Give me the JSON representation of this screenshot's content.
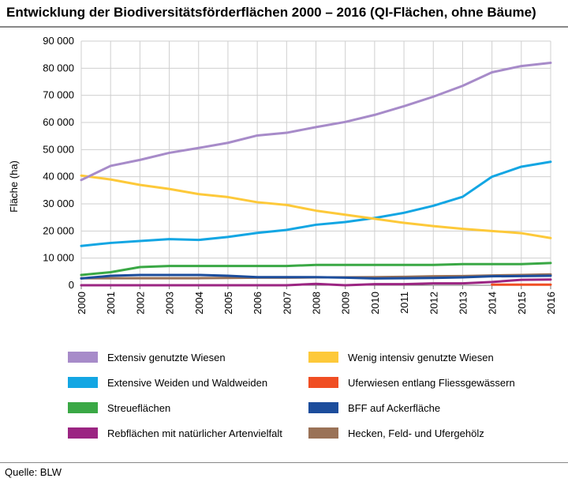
{
  "title": "Entwicklung der Biodiversitätsförderflächen 2000 – 2016 (QI-Flächen, ohne Bäume)",
  "source": "Quelle: BLW",
  "chart_data": {
    "type": "line",
    "title": "Entwicklung der Biodiversitätsförderflächen 2000 – 2016 (QI-Flächen, ohne Bäume)",
    "xlabel": "",
    "ylabel": "Fläche (ha)",
    "ylim": [
      0,
      90000
    ],
    "grid": true,
    "legend_position": "bottom",
    "x": [
      2000,
      2001,
      2002,
      2003,
      2004,
      2005,
      2006,
      2007,
      2008,
      2009,
      2010,
      2011,
      2012,
      2013,
      2014,
      2015,
      2016
    ],
    "x_tick_labels": [
      "2000",
      "2001",
      "2002",
      "2003",
      "2004",
      "2005",
      "2006",
      "2007",
      "2008",
      "2009",
      "2010",
      "2011",
      "2012",
      "2013",
      "2014",
      "2015",
      "2016"
    ],
    "y_ticks": [
      0,
      10000,
      20000,
      30000,
      40000,
      50000,
      60000,
      70000,
      80000,
      90000
    ],
    "y_tick_labels": [
      "0",
      "10 000",
      "20 000",
      "30 000",
      "40 000",
      "50 000",
      "60 000",
      "70 000",
      "80 000",
      "90 000"
    ],
    "series": [
      {
        "name": "Extensiv genutzte Wiesen",
        "color": "#a78bc9",
        "values": [
          38800,
          44000,
          46200,
          48800,
          50600,
          52500,
          55200,
          56200,
          58300,
          60200,
          62800,
          66000,
          69500,
          73500,
          78500,
          80800,
          82000
        ]
      },
      {
        "name": "Wenig intensiv genutzte Wiesen",
        "color": "#fdc93a",
        "values": [
          40400,
          39000,
          37000,
          35500,
          33600,
          32500,
          30600,
          29600,
          27500,
          26000,
          24500,
          23000,
          21800,
          20800,
          20000,
          19200,
          17400
        ]
      },
      {
        "name": "Extensive Weiden und Waldweiden",
        "color": "#13a6e3",
        "values": [
          14500,
          15600,
          16300,
          17000,
          16700,
          17800,
          19300,
          20400,
          22300,
          23300,
          24800,
          26700,
          29300,
          32600,
          40000,
          43700,
          45500
        ]
      },
      {
        "name": "Uferwiesen entlang Fliessgewässern",
        "color": "#f04e23",
        "values": [
          null,
          null,
          null,
          null,
          null,
          null,
          null,
          null,
          null,
          null,
          null,
          null,
          null,
          null,
          200,
          200,
          200
        ]
      },
      {
        "name": "Streueflächen",
        "color": "#3aa845",
        "values": [
          3800,
          4800,
          6700,
          7100,
          7100,
          7100,
          7100,
          7100,
          7500,
          7500,
          7500,
          7500,
          7500,
          7800,
          7800,
          7800,
          8200
        ]
      },
      {
        "name": "BFF auf Ackerfläche",
        "color": "#1c4d9c",
        "values": [
          2500,
          3500,
          3800,
          3800,
          3800,
          3500,
          3000,
          3000,
          3000,
          2800,
          2500,
          2600,
          2700,
          2900,
          3300,
          3400,
          3500
        ]
      },
      {
        "name": "Rebflächen mit natürlicher Artenvielfalt",
        "color": "#9b2582",
        "values": [
          0,
          0,
          0,
          0,
          0,
          0,
          0,
          0,
          500,
          0,
          400,
          400,
          700,
          700,
          1200,
          2000,
          2100
        ]
      },
      {
        "name": "Hecken, Feld- und Ufergehölz",
        "color": "#9a7257",
        "values": [
          2600,
          2600,
          2600,
          2600,
          2600,
          2700,
          2800,
          2800,
          2900,
          2900,
          3000,
          3100,
          3300,
          3400,
          3600,
          3800,
          4000
        ]
      }
    ]
  }
}
